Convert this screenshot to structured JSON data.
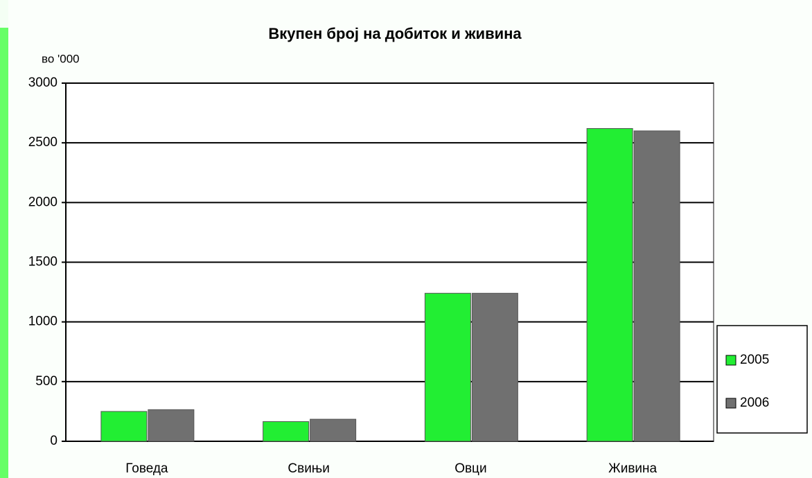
{
  "chart_data": {
    "type": "bar",
    "title": "Вкупен број на добиток и живина",
    "y_label": "во '000",
    "categories": [
      "Говеда",
      "Свињи",
      "Овци",
      "Живина"
    ],
    "series": [
      {
        "name": "2005",
        "color": "#22ee33",
        "values": [
          250,
          165,
          1240,
          2620
        ]
      },
      {
        "name": "2006",
        "color": "#707070",
        "values": [
          265,
          185,
          1240,
          2600
        ]
      }
    ],
    "ylim": [
      0,
      3000
    ],
    "yticks": [
      0,
      500,
      1000,
      1500,
      2000,
      2500,
      3000
    ],
    "grid": true,
    "legend": "right"
  }
}
